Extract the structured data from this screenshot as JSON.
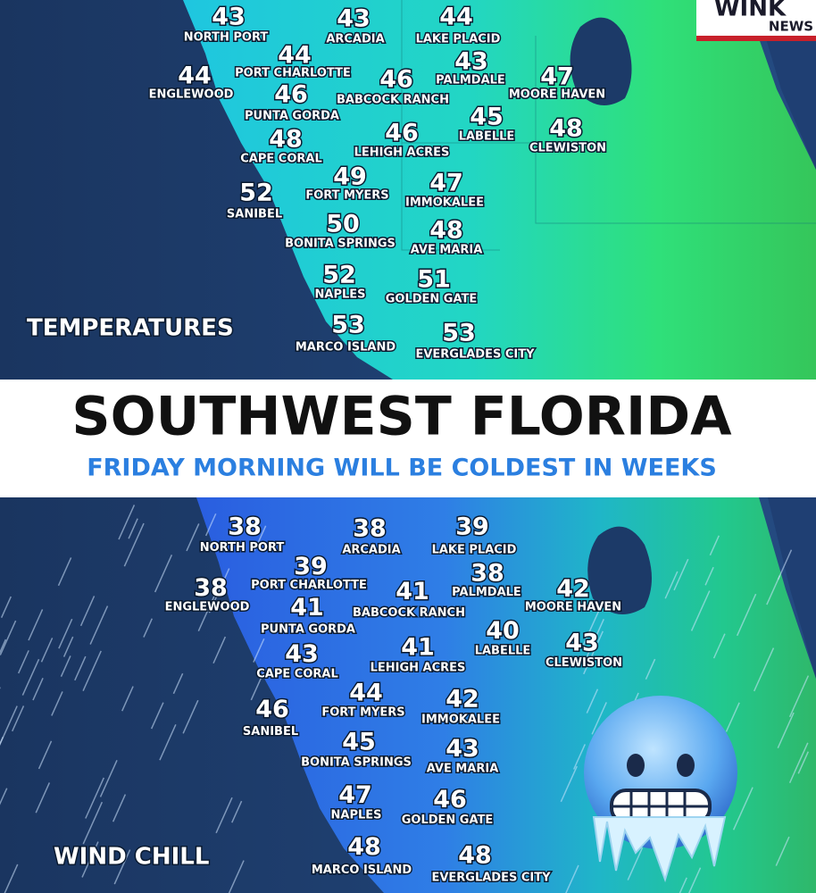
{
  "logo": {
    "line1": "WINK",
    "line2": "NEWS"
  },
  "banner": {
    "title": "SOUTHWEST FLORIDA",
    "subtitle": "FRIDAY MORNING WILL BE COLDEST IN WEEKS"
  },
  "maps": [
    {
      "label": "TEMPERATURES",
      "cities": [
        {
          "name": "NORTH PORT",
          "value": 43
        },
        {
          "name": "ARCADIA",
          "value": 43
        },
        {
          "name": "LAKE PLACID",
          "value": 44
        },
        {
          "name": "PORT CHARLOTTE",
          "value": 44
        },
        {
          "name": "PALMDALE",
          "value": 43
        },
        {
          "name": "ENGLEWOOD",
          "value": 44
        },
        {
          "name": "BABCOCK RANCH",
          "value": 46
        },
        {
          "name": "MOORE HAVEN",
          "value": 47
        },
        {
          "name": "PUNTA GORDA",
          "value": 46
        },
        {
          "name": "LABELLE",
          "value": 45
        },
        {
          "name": "CLEWISTON",
          "value": 48
        },
        {
          "name": "CAPE CORAL",
          "value": 48
        },
        {
          "name": "LEHIGH ACRES",
          "value": 46
        },
        {
          "name": "FORT MYERS",
          "value": 49
        },
        {
          "name": "IMMOKALEE",
          "value": 47
        },
        {
          "name": "SANIBEL",
          "value": 52
        },
        {
          "name": "BONITA SPRINGS",
          "value": 50
        },
        {
          "name": "AVE MARIA",
          "value": 48
        },
        {
          "name": "NAPLES",
          "value": 52
        },
        {
          "name": "GOLDEN GATE",
          "value": 51
        },
        {
          "name": "MARCO ISLAND",
          "value": 53
        },
        {
          "name": "EVERGLADES CITY",
          "value": 53
        }
      ]
    },
    {
      "label": "WIND CHILL",
      "cities": [
        {
          "name": "NORTH PORT",
          "value": 38
        },
        {
          "name": "ARCADIA",
          "value": 38
        },
        {
          "name": "LAKE PLACID",
          "value": 39
        },
        {
          "name": "PORT CHARLOTTE",
          "value": 39
        },
        {
          "name": "PALMDALE",
          "value": 38
        },
        {
          "name": "ENGLEWOOD",
          "value": 38
        },
        {
          "name": "BABCOCK RANCH",
          "value": 41
        },
        {
          "name": "MOORE HAVEN",
          "value": 42
        },
        {
          "name": "PUNTA GORDA",
          "value": 41
        },
        {
          "name": "LABELLE",
          "value": 40
        },
        {
          "name": "CLEWISTON",
          "value": 43
        },
        {
          "name": "CAPE CORAL",
          "value": 43
        },
        {
          "name": "LEHIGH ACRES",
          "value": 41
        },
        {
          "name": "FORT MYERS",
          "value": 44
        },
        {
          "name": "IMMOKALEE",
          "value": 42
        },
        {
          "name": "SANIBEL",
          "value": 46
        },
        {
          "name": "BONITA SPRINGS",
          "value": 45
        },
        {
          "name": "AVE MARIA",
          "value": 43
        },
        {
          "name": "NAPLES",
          "value": 47
        },
        {
          "name": "GOLDEN GATE",
          "value": 46
        },
        {
          "name": "MARCO ISLAND",
          "value": 48
        },
        {
          "name": "EVERGLADES CITY",
          "value": 48
        }
      ]
    }
  ]
}
